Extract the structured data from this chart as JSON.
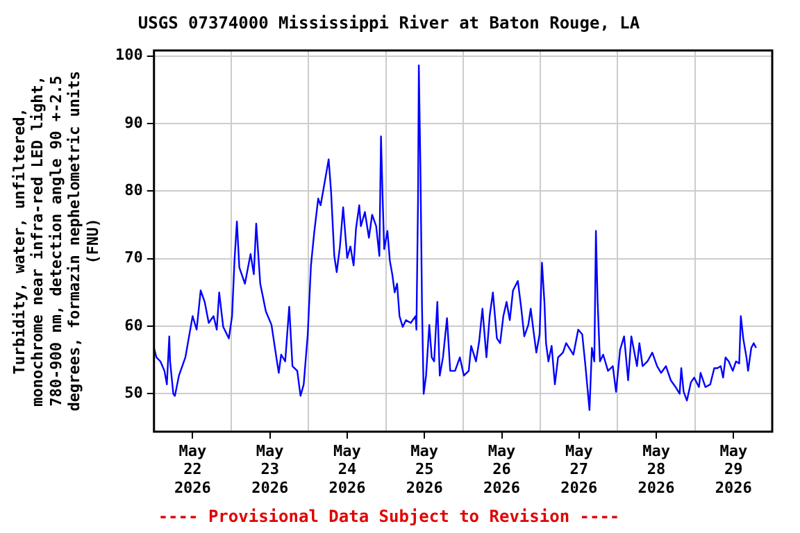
{
  "chart_data": {
    "type": "line",
    "title": "USGS 07374000 Mississippi River at Baton Rouge, LA",
    "ylabel": "Turbidity, water, unfiltered, monochrome near infra-red LED light, 780-900 nm, detection angle 90 +-2.5 degrees, formazin nephelometric units (FNU)",
    "annotations": [
      "---- Provisional Data Subject to Revision ----"
    ],
    "xlim": [
      "2026-05-22",
      "2026-05-30"
    ],
    "xticks": [
      {
        "value": "2026-05-22T12:00",
        "label": "May 22 2026"
      },
      {
        "value": "2026-05-23T12:00",
        "label": "May 23 2026"
      },
      {
        "value": "2026-05-24T12:00",
        "label": "May 24 2026"
      },
      {
        "value": "2026-05-25T12:00",
        "label": "May 25 2026"
      },
      {
        "value": "2026-05-26T12:00",
        "label": "May 26 2026"
      },
      {
        "value": "2026-05-27T12:00",
        "label": "May 27 2026"
      },
      {
        "value": "2026-05-28T12:00",
        "label": "May 28 2026"
      },
      {
        "value": "2026-05-29T12:00",
        "label": "May 29 2026"
      },
      {
        "value": "2026-05-23",
        "label": null
      },
      {
        "value": "2026-05-24",
        "label": null
      },
      {
        "value": "2026-05-25",
        "label": null
      },
      {
        "value": "2026-05-26",
        "label": null
      },
      {
        "value": "2026-05-27",
        "label": null
      },
      {
        "value": "2026-05-28",
        "label": null
      },
      {
        "value": "2026-05-29",
        "label": null
      }
    ],
    "ylim": [
      44.4,
      100.8
    ],
    "yticks": [
      50,
      60,
      70,
      80,
      90,
      100
    ],
    "grid": true,
    "marker": "none",
    "line_style": "solid",
    "series": [
      {
        "color": "#0000ff",
        "x": [
          "2026-05-22T00:00",
          "2026-05-22T00:45",
          "2026-05-22T02:00",
          "2026-05-22T03:15",
          "2026-05-22T04:00",
          "2026-05-22T04:45",
          "2026-05-22T05:00",
          "2026-05-22T06:00",
          "2026-05-22T06:30",
          "2026-05-22T07:45",
          "2026-05-22T09:45",
          "2026-05-22T12:00",
          "2026-05-22T13:15",
          "2026-05-22T14:30",
          "2026-05-22T15:45",
          "2026-05-22T17:00",
          "2026-05-22T18:30",
          "2026-05-22T19:30",
          "2026-05-22T20:15",
          "2026-05-22T21:30",
          "2026-05-22T23:15",
          "2026-05-23T00:15",
          "2026-05-23T01:00",
          "2026-05-23T01:45",
          "2026-05-23T02:30",
          "2026-05-23T04:15",
          "2026-05-23T06:00",
          "2026-05-23T07:00",
          "2026-05-23T07:45",
          "2026-05-23T09:00",
          "2026-05-23T10:45",
          "2026-05-23T12:30",
          "2026-05-23T14:00",
          "2026-05-23T14:45",
          "2026-05-23T15:30",
          "2026-05-23T16:45",
          "2026-05-23T18:00",
          "2026-05-23T19:00",
          "2026-05-23T20:30",
          "2026-05-23T21:30",
          "2026-05-23T22:30",
          "2026-05-23T23:45",
          "2026-05-24T00:45",
          "2026-05-24T01:45",
          "2026-05-24T03:00",
          "2026-05-24T03:45",
          "2026-05-24T04:45",
          "2026-05-24T06:15",
          "2026-05-24T07:00",
          "2026-05-24T08:00",
          "2026-05-24T08:45",
          "2026-05-24T09:45",
          "2026-05-24T10:45",
          "2026-05-24T12:00",
          "2026-05-24T13:00",
          "2026-05-24T14:00",
          "2026-05-24T14:45",
          "2026-05-24T15:45",
          "2026-05-24T16:15",
          "2026-05-24T17:30",
          "2026-05-24T18:45",
          "2026-05-24T19:45",
          "2026-05-24T21:00",
          "2026-05-24T22:00",
          "2026-05-24T22:30",
          "2026-05-24T23:00",
          "2026-05-24T23:30",
          "2026-05-25T00:30",
          "2026-05-25T01:15",
          "2026-05-25T02:00",
          "2026-05-25T02:45",
          "2026-05-25T03:30",
          "2026-05-25T04:15",
          "2026-05-25T05:15",
          "2026-05-25T06:15",
          "2026-05-25T07:45",
          "2026-05-25T09:15",
          "2026-05-25T09:30",
          "2026-05-25T10:00",
          "2026-05-25T10:15",
          "2026-05-25T10:45",
          "2026-05-25T11:15",
          "2026-05-25T11:45",
          "2026-05-25T12:30",
          "2026-05-25T13:30",
          "2026-05-25T14:15",
          "2026-05-25T15:00",
          "2026-05-25T16:00",
          "2026-05-25T16:45",
          "2026-05-25T17:45",
          "2026-05-25T19:00",
          "2026-05-25T20:00",
          "2026-05-25T21:30",
          "2026-05-25T23:00",
          "2026-05-26T00:15",
          "2026-05-26T01:45",
          "2026-05-26T02:30",
          "2026-05-26T04:00",
          "2026-05-26T05:00",
          "2026-05-26T06:00",
          "2026-05-26T07:15",
          "2026-05-26T08:15",
          "2026-05-26T09:15",
          "2026-05-26T10:30",
          "2026-05-26T11:30",
          "2026-05-26T12:30",
          "2026-05-26T13:30",
          "2026-05-26T14:30",
          "2026-05-26T15:30",
          "2026-05-26T17:00",
          "2026-05-26T18:00",
          "2026-05-26T19:00",
          "2026-05-26T20:15",
          "2026-05-26T21:00",
          "2026-05-26T22:00",
          "2026-05-26T22:45",
          "2026-05-26T23:45",
          "2026-05-27T00:30",
          "2026-05-27T01:15",
          "2026-05-27T01:45",
          "2026-05-27T02:30",
          "2026-05-27T03:30",
          "2026-05-27T04:30",
          "2026-05-27T05:30",
          "2026-05-27T07:00",
          "2026-05-27T08:00",
          "2026-05-27T10:15",
          "2026-05-27T11:45",
          "2026-05-27T13:00",
          "2026-05-27T14:00",
          "2026-05-27T15:15",
          "2026-05-27T16:00",
          "2026-05-27T16:45",
          "2026-05-27T17:15",
          "2026-05-27T17:45",
          "2026-05-27T18:30",
          "2026-05-27T19:30",
          "2026-05-27T21:00",
          "2026-05-27T22:30",
          "2026-05-27T23:30",
          "2026-05-28T00:45",
          "2026-05-28T02:00",
          "2026-05-28T03:15",
          "2026-05-28T04:15",
          "2026-05-28T06:00",
          "2026-05-28T06:45",
          "2026-05-28T07:45",
          "2026-05-28T09:15",
          "2026-05-28T10:45",
          "2026-05-28T12:15",
          "2026-05-28T13:30",
          "2026-05-28T15:00",
          "2026-05-28T16:30",
          "2026-05-28T18:00",
          "2026-05-28T19:15",
          "2026-05-28T19:45",
          "2026-05-28T20:30",
          "2026-05-28T21:30",
          "2026-05-28T22:45",
          "2026-05-28T23:45",
          "2026-05-29T01:15",
          "2026-05-29T01:45",
          "2026-05-29T03:15",
          "2026-05-29T04:45",
          "2026-05-29T06:00",
          "2026-05-29T07:00",
          "2026-05-29T08:00",
          "2026-05-29T08:45",
          "2026-05-29T09:30",
          "2026-05-29T10:30",
          "2026-05-29T11:45",
          "2026-05-29T12:45",
          "2026-05-29T13:45",
          "2026-05-29T14:15",
          "2026-05-29T15:00",
          "2026-05-29T16:00",
          "2026-05-29T16:30",
          "2026-05-29T17:30",
          "2026-05-29T18:15",
          "2026-05-29T19:00"
        ],
        "values": [
          56.8,
          55.4,
          54.8,
          53.4,
          51.4,
          58.5,
          54.8,
          50,
          49.7,
          52.7,
          55.4,
          61.5,
          59.5,
          65.3,
          63.6,
          60.5,
          61.5,
          59.5,
          65,
          59.9,
          58.2,
          61.5,
          69.7,
          75.5,
          68.7,
          66.3,
          70.7,
          67.7,
          75.2,
          66.3,
          62.2,
          60.2,
          55.4,
          53.1,
          55.8,
          54.8,
          62.9,
          54.1,
          53.4,
          49.7,
          51.4,
          58.8,
          69,
          73.8,
          78.9,
          77.9,
          80.6,
          84.7,
          79.9,
          70.4,
          68,
          71.8,
          77.6,
          70.1,
          71.8,
          69,
          74.5,
          77.9,
          74.8,
          76.9,
          73.1,
          76.5,
          74.8,
          70.4,
          88.1,
          79.2,
          71.4,
          74.1,
          69.7,
          67.7,
          65,
          66.3,
          61.5,
          59.9,
          60.9,
          60.5,
          61.5,
          59.5,
          78.6,
          98.6,
          83.3,
          62.6,
          50,
          52.7,
          60.2,
          55.4,
          54.8,
          63.6,
          52.7,
          55.4,
          61.2,
          53.4,
          53.4,
          55.4,
          52.7,
          53.4,
          57.1,
          54.8,
          57.8,
          62.6,
          55.4,
          61.5,
          65,
          58.2,
          57.5,
          61.5,
          63.6,
          60.9,
          65.3,
          66.7,
          62.9,
          58.5,
          60.2,
          62.6,
          58.8,
          56.1,
          58.8,
          69.4,
          63.6,
          57.5,
          54.8,
          57.1,
          51.4,
          55.4,
          56.1,
          57.5,
          55.8,
          59.5,
          58.8,
          54.1,
          47.6,
          56.8,
          54.8,
          74.1,
          64,
          54.8,
          55.8,
          53.4,
          54.1,
          50.3,
          56.5,
          58.5,
          52,
          58.5,
          54.1,
          57.5,
          54.1,
          54.8,
          56.1,
          54.1,
          53.1,
          54.1,
          52,
          51,
          50,
          53.8,
          50.3,
          49,
          51.7,
          52.4,
          51,
          53.1,
          51,
          51.4,
          53.8,
          53.8,
          54.1,
          52.4,
          55.4,
          54.8,
          53.4,
          54.8,
          54.5,
          61.5,
          58.2,
          55.4,
          53.4,
          56.8,
          57.5,
          56.8
        ]
      }
    ]
  }
}
